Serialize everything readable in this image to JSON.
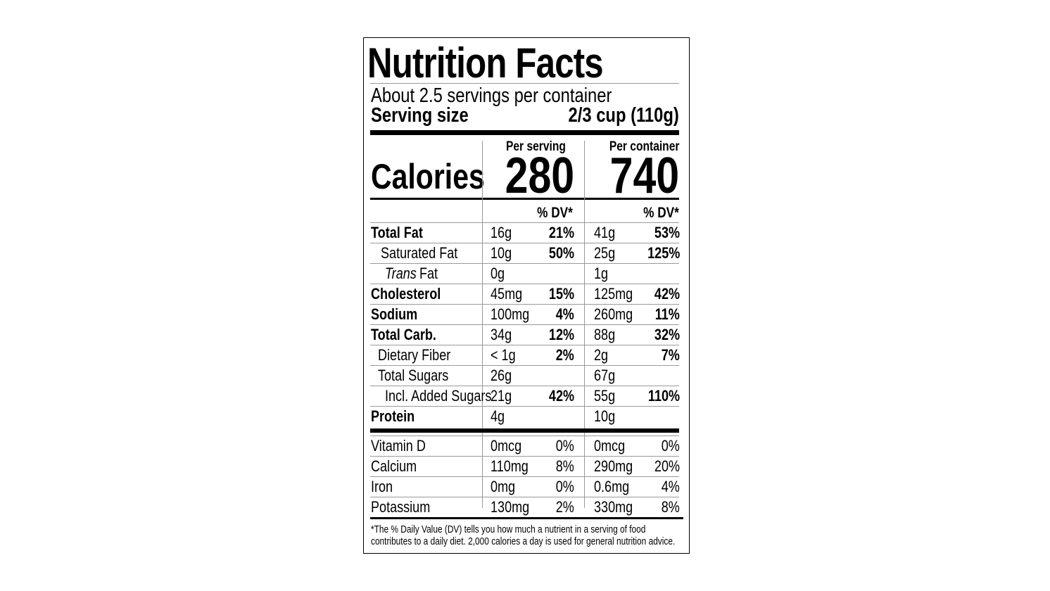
{
  "title": "Nutrition Facts",
  "servings": "About 2.5 servings per container",
  "serving_size": {
    "label": "Serving size",
    "value": "2/3 cup (110g)"
  },
  "calories": {
    "label": "Calories",
    "per_serving_header": "Per serving",
    "per_container_header": "Per container",
    "per_serving": "280",
    "per_container": "740"
  },
  "dv_header": {
    "serving": "% DV*",
    "container": "% DV*"
  },
  "nutrients": [
    {
      "name": "Total Fat",
      "serving_amount": "16g",
      "serving_dv": "21%",
      "container_amount": "41g",
      "container_dv": "53%"
    },
    {
      "name": "Saturated Fat",
      "serving_amount": "10g",
      "serving_dv": "50%",
      "container_amount": "25g",
      "container_dv": "125%"
    },
    {
      "name_italic": "Trans",
      "name": "Fat",
      "serving_amount": "0g",
      "container_amount": "1g"
    },
    {
      "name": "Cholesterol",
      "serving_amount": "45mg",
      "serving_dv": "15%",
      "container_amount": "125mg",
      "container_dv": "42%"
    },
    {
      "name": "Sodium",
      "serving_amount": "100mg",
      "serving_dv": "4%",
      "container_amount": "260mg",
      "container_dv": "11%"
    },
    {
      "name": "Total Carb.",
      "serving_amount": "34g",
      "serving_dv": "12%",
      "container_amount": "88g",
      "container_dv": "32%"
    },
    {
      "name": "Dietary Fiber",
      "serving_amount": "< 1g",
      "serving_dv": "2%",
      "container_amount": "2g",
      "container_dv": "7%"
    },
    {
      "name": "Total Sugars",
      "serving_amount": "26g",
      "container_amount": "67g"
    },
    {
      "name": "Incl. Added Sugars",
      "serving_amount": "21g",
      "serving_dv": "42%",
      "container_amount": "55g",
      "container_dv": "110%"
    },
    {
      "name": "Protein",
      "serving_amount": "4g",
      "container_amount": "10g"
    }
  ],
  "vitamins": [
    {
      "name": "Vitamin D",
      "serving_amount": "0mcg",
      "serving_dv": "0%",
      "container_amount": "0mcg",
      "container_dv": "0%"
    },
    {
      "name": "Calcium",
      "serving_amount": "110mg",
      "serving_dv": "8%",
      "container_amount": "290mg",
      "container_dv": "20%"
    },
    {
      "name": "Iron",
      "serving_amount": "0mg",
      "serving_dv": "0%",
      "container_amount": "0.6mg",
      "container_dv": "4%"
    },
    {
      "name": "Potassium",
      "serving_amount": "130mg",
      "serving_dv": "2%",
      "container_amount": "330mg",
      "container_dv": "8%"
    }
  ],
  "footnote": [
    "*The % Daily Value (DV) tells you how much a nutrient in a serving of food",
    "contributes to a daily diet. 2,000 calories a day is used for general nutrition advice."
  ]
}
